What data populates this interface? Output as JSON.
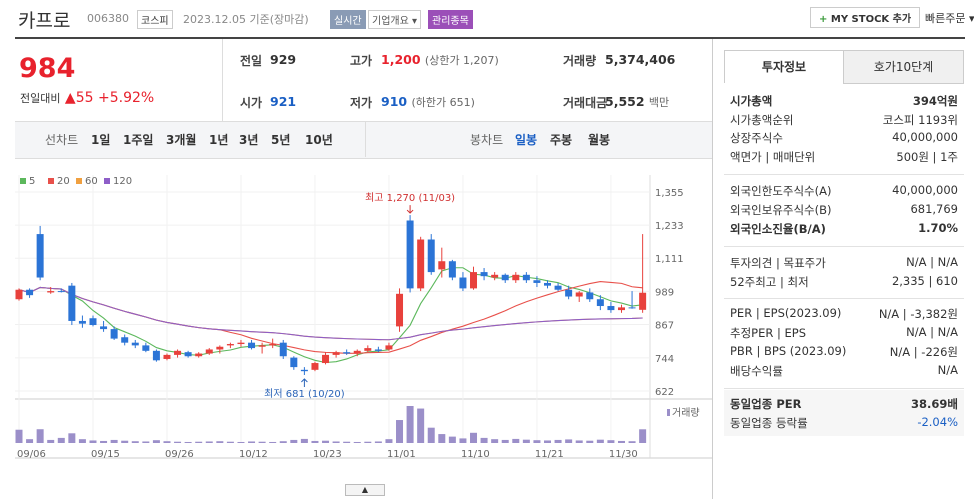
{
  "header": {
    "name": "카프로",
    "code": "006380",
    "market": "코스피",
    "date": "2023.12.05 기준(장마감)",
    "realtime": "실시간",
    "overview": "기업개요",
    "managed": "관리종목",
    "mystock": "MY STOCK 추가",
    "quick_order": "빠른주문"
  },
  "price": {
    "current": "984",
    "change_label": "전일대비",
    "change": "55",
    "change_pct": "+5.92%"
  },
  "summary": [
    [
      {
        "label": "전일",
        "value": "929"
      },
      {
        "label": "고가",
        "value": "1,200",
        "note": "(상한가 1,207)"
      },
      {
        "label": "거래량",
        "value": "5,374,406"
      }
    ],
    [
      {
        "label": "시가",
        "value": "921"
      },
      {
        "label": "저가",
        "value": "910",
        "note": "(하한가 651)"
      },
      {
        "label": "거래대금",
        "value": "5,552",
        "note": "백만"
      }
    ]
  ],
  "periods": {
    "line_label": "선차트",
    "line": [
      "1일",
      "1주일",
      "3개월",
      "1년",
      "3년",
      "5년",
      "10년"
    ],
    "candle_label": "봉차트",
    "candle": [
      "일봉",
      "주봉",
      "월봉"
    ]
  },
  "chart_data": {
    "type": "candlestick",
    "categories": [
      "09/06",
      null,
      null,
      null,
      null,
      null,
      null,
      "09/15",
      null,
      null,
      null,
      null,
      null,
      null,
      "09/26",
      null,
      null,
      null,
      null,
      null,
      null,
      "10/12",
      null,
      null,
      null,
      null,
      null,
      null,
      "10/23",
      null,
      null,
      null,
      null,
      null,
      null,
      "11/01",
      null,
      null,
      null,
      null,
      null,
      null,
      "11/10",
      null,
      null,
      null,
      null,
      null,
      null,
      "11/21",
      null,
      null,
      null,
      null,
      null,
      null,
      "11/30",
      null,
      null,
      null
    ],
    "open": [
      960,
      995,
      1200,
      985,
      990,
      1010,
      880,
      890,
      860,
      850,
      820,
      800,
      790,
      770,
      740,
      755,
      765,
      750,
      760,
      775,
      790,
      795,
      800,
      785,
      790,
      800,
      745,
      700,
      700,
      725,
      755,
      765,
      760,
      770,
      775,
      775,
      860,
      1250,
      1000,
      1180,
      1070,
      1100,
      1040,
      1000,
      1060,
      1040,
      1050,
      1030,
      1050,
      1030,
      1020,
      1010,
      995,
      970,
      985,
      960,
      935,
      920,
      930,
      921
    ],
    "high": [
      1000,
      1000,
      1230,
      1005,
      1000,
      1020,
      900,
      900,
      880,
      860,
      830,
      810,
      800,
      775,
      760,
      775,
      770,
      765,
      780,
      790,
      800,
      810,
      810,
      800,
      815,
      810,
      750,
      710,
      730,
      765,
      770,
      775,
      775,
      790,
      785,
      800,
      1000,
      1270,
      1190,
      1200,
      1150,
      1105,
      1060,
      1080,
      1075,
      1060,
      1055,
      1060,
      1060,
      1045,
      1030,
      1020,
      1010,
      990,
      1000,
      975,
      950,
      940,
      990,
      1200
    ],
    "low": [
      955,
      965,
      1030,
      980,
      985,
      865,
      855,
      860,
      840,
      810,
      790,
      780,
      765,
      730,
      735,
      745,
      745,
      745,
      755,
      760,
      780,
      785,
      775,
      760,
      780,
      740,
      700,
      681,
      695,
      720,
      745,
      755,
      750,
      765,
      765,
      770,
      840,
      985,
      990,
      1050,
      1040,
      1030,
      990,
      995,
      1030,
      1030,
      1020,
      1020,
      1020,
      1005,
      1000,
      990,
      960,
      950,
      950,
      920,
      910,
      910,
      925,
      910
    ],
    "close": [
      995,
      975,
      1040,
      990,
      988,
      880,
      870,
      865,
      850,
      815,
      800,
      790,
      770,
      735,
      755,
      770,
      750,
      760,
      775,
      785,
      795,
      800,
      780,
      790,
      795,
      750,
      710,
      695,
      725,
      755,
      765,
      760,
      770,
      780,
      770,
      790,
      980,
      1000,
      1180,
      1060,
      1100,
      1040,
      1000,
      1060,
      1045,
      1050,
      1030,
      1050,
      1030,
      1020,
      1010,
      995,
      970,
      985,
      960,
      935,
      920,
      930,
      929,
      984
    ],
    "volume": [
      5200000,
      1500000,
      5400000,
      1200000,
      2000000,
      3800000,
      1500000,
      1000000,
      800000,
      1200000,
      900000,
      700000,
      600000,
      1100000,
      700000,
      500000,
      400000,
      500000,
      600000,
      700000,
      500000,
      400000,
      600000,
      500000,
      400000,
      700000,
      1200000,
      1600000,
      800000,
      900000,
      600000,
      500000,
      400000,
      500000,
      600000,
      1500000,
      9000000,
      14500000,
      13500000,
      6000000,
      3500000,
      2500000,
      1800000,
      4000000,
      2000000,
      1500000,
      1200000,
      1600000,
      1300000,
      1100000,
      1000000,
      1200000,
      1400000,
      1000000,
      900000,
      1300000,
      1100000,
      800000,
      700000,
      5374406
    ],
    "ylim": [
      622,
      1355
    ],
    "yticks": [
      {
        "value": 1355,
        "label": "1,355"
      },
      {
        "value": 1233,
        "label": "1,233"
      },
      {
        "value": 1111,
        "label": "1,111"
      },
      989,
      867,
      744,
      622
    ],
    "up_color": "#e8413c",
    "down_color": "#2b74d6",
    "volume_color": "#9b8fc9",
    "ma": [
      {
        "period": 5,
        "color": "#5cb85c"
      },
      {
        "period": 20,
        "color": "#e8504a"
      },
      {
        "period": 60,
        "color": "#f0a040"
      },
      {
        "period": 120,
        "color": "#8e5ec8"
      }
    ],
    "annotations": [
      {
        "text": "최고 1,270 (11/03)"
      },
      {
        "text": "최저 681 (10/20)"
      }
    ],
    "volume_label": "거래량"
  },
  "invest": {
    "tabs": [
      "투자정보",
      "호가10단계"
    ],
    "groups": [
      [
        {
          "label": "시가총액",
          "value": "394억원"
        },
        {
          "label": "시가총액순위",
          "value": "코스피 1193위"
        },
        {
          "label": "상장주식수",
          "value": "40,000,000"
        },
        {
          "label": "액면가 | 매매단위",
          "value": "500원 | 1주"
        }
      ],
      [
        {
          "label": "외국인한도주식수(A)",
          "value": "40,000,000"
        },
        {
          "label": "외국인보유주식수(B)",
          "value": "681,769"
        },
        {
          "label": "외국인소진율(B/A)",
          "value": "1.70%"
        }
      ],
      [
        {
          "label": "투자의견 | 목표주가",
          "value": "N/A | N/A"
        },
        {
          "label": "52주최고 | 최저",
          "value": "2,335 | 610"
        }
      ],
      [
        {
          "label": "PER | EPS(2023.09)",
          "value": "N/A | -3,382원"
        },
        {
          "label": "추정PER | EPS",
          "value": "N/A | N/A"
        },
        {
          "label": "PBR | BPS (2023.09)",
          "value": "N/A | -226원"
        },
        {
          "label": "배당수익률",
          "value": "N/A"
        }
      ],
      [
        {
          "label": "동일업종 PER",
          "value": "38.69배"
        },
        {
          "label": "동일업종 등락률",
          "value": "-2.04%"
        }
      ]
    ]
  }
}
